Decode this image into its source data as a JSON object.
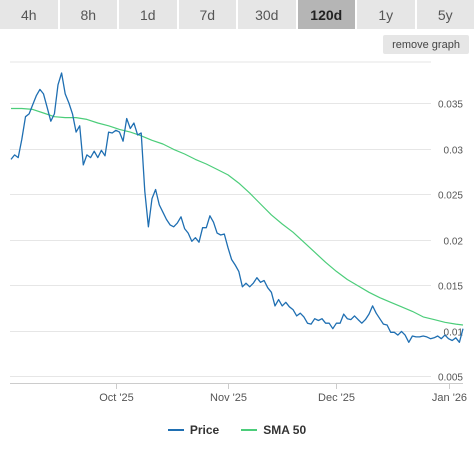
{
  "tabs": [
    {
      "label": "4h",
      "active": false
    },
    {
      "label": "8h",
      "active": false
    },
    {
      "label": "1d",
      "active": false
    },
    {
      "label": "7d",
      "active": false
    },
    {
      "label": "30d",
      "active": false
    },
    {
      "label": "120d",
      "active": true
    },
    {
      "label": "1y",
      "active": false
    },
    {
      "label": "5y",
      "active": false
    }
  ],
  "remove_graph_label": "remove graph",
  "colors": {
    "price": "#1f6fb2",
    "sma": "#4ccd7a",
    "grid": "#e6e6e6",
    "axis_text": "#555555"
  },
  "chart_data": {
    "type": "line",
    "ylim": [
      0.005,
      0.035
    ],
    "y_ticks": [
      0.005,
      0.01,
      0.015,
      0.02,
      0.025,
      0.03,
      0.035
    ],
    "y_tick_labels": [
      "0.005",
      "0.01",
      "0.015",
      "0.02",
      "0.025",
      "0.03",
      "0.035"
    ],
    "x_ticks": [
      {
        "label": "Oct '25",
        "day": 29
      },
      {
        "label": "Nov '25",
        "day": 60
      },
      {
        "label": "Dec '25",
        "day": 90
      },
      {
        "label": "Jan '26",
        "day": 121
      }
    ],
    "x_range": [
      0,
      125
    ],
    "grid": true,
    "legend_position": "bottom",
    "series": [
      {
        "name": "Price",
        "color": "#1f6fb2",
        "points": [
          [
            0,
            0.0288
          ],
          [
            1,
            0.0293
          ],
          [
            2,
            0.029
          ],
          [
            3,
            0.031
          ],
          [
            4,
            0.0335
          ],
          [
            5,
            0.0338
          ],
          [
            6,
            0.0348
          ],
          [
            7,
            0.0358
          ],
          [
            8,
            0.0365
          ],
          [
            9,
            0.036
          ],
          [
            10,
            0.0345
          ],
          [
            11,
            0.033
          ],
          [
            12,
            0.0338
          ],
          [
            13,
            0.037
          ],
          [
            14,
            0.0383
          ],
          [
            15,
            0.036
          ],
          [
            16,
            0.035
          ],
          [
            17,
            0.0338
          ],
          [
            18,
            0.0318
          ],
          [
            19,
            0.0325
          ],
          [
            20,
            0.0282
          ],
          [
            21,
            0.0293
          ],
          [
            22,
            0.029
          ],
          [
            23,
            0.0297
          ],
          [
            24,
            0.029
          ],
          [
            25,
            0.0298
          ],
          [
            26,
            0.0292
          ],
          [
            27,
            0.0318
          ],
          [
            28,
            0.0317
          ],
          [
            29,
            0.032
          ],
          [
            30,
            0.0318
          ],
          [
            31,
            0.0308
          ],
          [
            32,
            0.0333
          ],
          [
            33,
            0.0322
          ],
          [
            34,
            0.0328
          ],
          [
            35,
            0.0315
          ],
          [
            36,
            0.0317
          ],
          [
            37,
            0.0253
          ],
          [
            38,
            0.0214
          ],
          [
            39,
            0.0245
          ],
          [
            40,
            0.0255
          ],
          [
            41,
            0.0238
          ],
          [
            42,
            0.023
          ],
          [
            43,
            0.0222
          ],
          [
            44,
            0.0216
          ],
          [
            45,
            0.0214
          ],
          [
            46,
            0.0218
          ],
          [
            47,
            0.0225
          ],
          [
            48,
            0.0212
          ],
          [
            49,
            0.0207
          ],
          [
            50,
            0.0198
          ],
          [
            51,
            0.0202
          ],
          [
            52,
            0.0197
          ],
          [
            53,
            0.0213
          ],
          [
            54,
            0.0213
          ],
          [
            55,
            0.0226
          ],
          [
            56,
            0.0219
          ],
          [
            57,
            0.0207
          ],
          [
            58,
            0.0205
          ],
          [
            59,
            0.0206
          ],
          [
            60,
            0.0191
          ],
          [
            61,
            0.0178
          ],
          [
            62,
            0.0172
          ],
          [
            63,
            0.0165
          ],
          [
            64,
            0.0148
          ],
          [
            65,
            0.0152
          ],
          [
            66,
            0.0148
          ],
          [
            67,
            0.0152
          ],
          [
            68,
            0.0158
          ],
          [
            69,
            0.0153
          ],
          [
            70,
            0.0155
          ],
          [
            71,
            0.0147
          ],
          [
            72,
            0.0142
          ],
          [
            73,
            0.0127
          ],
          [
            74,
            0.0134
          ],
          [
            75,
            0.0127
          ],
          [
            76,
            0.0131
          ],
          [
            77,
            0.0126
          ],
          [
            78,
            0.0123
          ],
          [
            79,
            0.0116
          ],
          [
            80,
            0.0119
          ],
          [
            81,
            0.0115
          ],
          [
            82,
            0.0108
          ],
          [
            83,
            0.0107
          ],
          [
            84,
            0.0113
          ],
          [
            85,
            0.0111
          ],
          [
            86,
            0.0113
          ],
          [
            87,
            0.0108
          ],
          [
            88,
            0.0108
          ],
          [
            89,
            0.0102
          ],
          [
            90,
            0.0108
          ],
          [
            91,
            0.0108
          ],
          [
            92,
            0.0118
          ],
          [
            93,
            0.0113
          ],
          [
            94,
            0.0112
          ],
          [
            95,
            0.0116
          ],
          [
            96,
            0.0112
          ],
          [
            97,
            0.0108
          ],
          [
            98,
            0.0112
          ],
          [
            99,
            0.0118
          ],
          [
            100,
            0.0127
          ],
          [
            101,
            0.0119
          ],
          [
            102,
            0.0113
          ],
          [
            103,
            0.0107
          ],
          [
            104,
            0.0106
          ],
          [
            105,
            0.0098
          ],
          [
            106,
            0.0098
          ],
          [
            107,
            0.0095
          ],
          [
            108,
            0.0099
          ],
          [
            109,
            0.0095
          ],
          [
            110,
            0.0087
          ],
          [
            111,
            0.0094
          ],
          [
            112,
            0.0093
          ],
          [
            113,
            0.0093
          ],
          [
            114,
            0.0094
          ],
          [
            115,
            0.0093
          ],
          [
            116,
            0.0091
          ],
          [
            117,
            0.0092
          ],
          [
            118,
            0.0094
          ],
          [
            119,
            0.0091
          ],
          [
            120,
            0.0095
          ],
          [
            121,
            0.0091
          ],
          [
            122,
            0.0089
          ],
          [
            123,
            0.0092
          ],
          [
            124,
            0.0087
          ],
          [
            125,
            0.0102
          ]
        ]
      },
      {
        "name": "SMA 50",
        "color": "#4ccd7a",
        "points": [
          [
            0,
            0.0344
          ],
          [
            3,
            0.0344
          ],
          [
            6,
            0.0343
          ],
          [
            9,
            0.0339
          ],
          [
            12,
            0.0335
          ],
          [
            15,
            0.0334
          ],
          [
            18,
            0.0334
          ],
          [
            21,
            0.0332
          ],
          [
            24,
            0.0328
          ],
          [
            27,
            0.0325
          ],
          [
            30,
            0.0321
          ],
          [
            33,
            0.0318
          ],
          [
            36,
            0.0314
          ],
          [
            39,
            0.0309
          ],
          [
            42,
            0.0305
          ],
          [
            45,
            0.0299
          ],
          [
            48,
            0.0294
          ],
          [
            51,
            0.0288
          ],
          [
            54,
            0.0283
          ],
          [
            57,
            0.0277
          ],
          [
            60,
            0.0271
          ],
          [
            63,
            0.0262
          ],
          [
            66,
            0.0251
          ],
          [
            69,
            0.0239
          ],
          [
            72,
            0.0227
          ],
          [
            75,
            0.0217
          ],
          [
            78,
            0.0208
          ],
          [
            81,
            0.0197
          ],
          [
            84,
            0.0186
          ],
          [
            87,
            0.0175
          ],
          [
            90,
            0.0165
          ],
          [
            93,
            0.0156
          ],
          [
            96,
            0.0149
          ],
          [
            99,
            0.0142
          ],
          [
            102,
            0.0136
          ],
          [
            105,
            0.0131
          ],
          [
            108,
            0.0126
          ],
          [
            111,
            0.0121
          ],
          [
            114,
            0.0115
          ],
          [
            117,
            0.0112
          ],
          [
            120,
            0.0109
          ],
          [
            123,
            0.0107
          ],
          [
            125,
            0.0106
          ]
        ]
      }
    ]
  }
}
